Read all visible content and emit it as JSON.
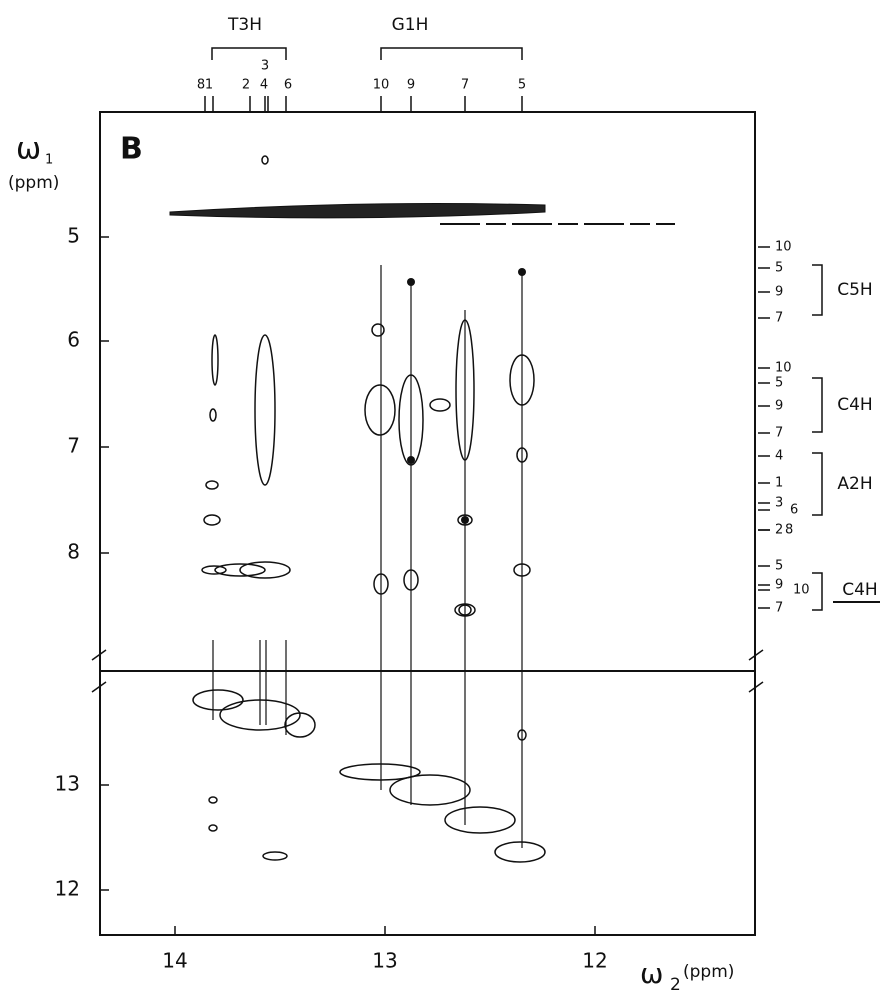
{
  "panel_label": "B",
  "x_axis": {
    "symbol": "ω",
    "subscript": "2",
    "unit": "(ppm)",
    "ticks": [
      "14",
      "13",
      "12"
    ]
  },
  "y_axis": {
    "symbol": "ω",
    "subscript": "1",
    "unit": "(ppm)",
    "ticks_upper": [
      "5",
      "6",
      "7",
      "8"
    ],
    "ticks_lower": [
      "13",
      "12"
    ]
  },
  "top_groups": [
    {
      "label": "T3H",
      "peaks": [
        "8",
        "1",
        "2",
        "3",
        "4",
        "6"
      ]
    },
    {
      "label": "G1H",
      "peaks": [
        "10",
        "9",
        "7",
        "5"
      ]
    }
  ],
  "right_groups": [
    {
      "label": "C5H",
      "peaks": [
        "10",
        "5",
        "9",
        "7"
      ]
    },
    {
      "label": "C4H",
      "peaks": [
        "10",
        "5",
        "9",
        "7"
      ]
    },
    {
      "label": "A2H",
      "peaks": [
        "4",
        "1",
        "3",
        "6",
        "2",
        "8"
      ]
    },
    {
      "label": "C4H",
      "peaks": [
        "5",
        "9",
        "10",
        "7"
      ]
    }
  ]
}
